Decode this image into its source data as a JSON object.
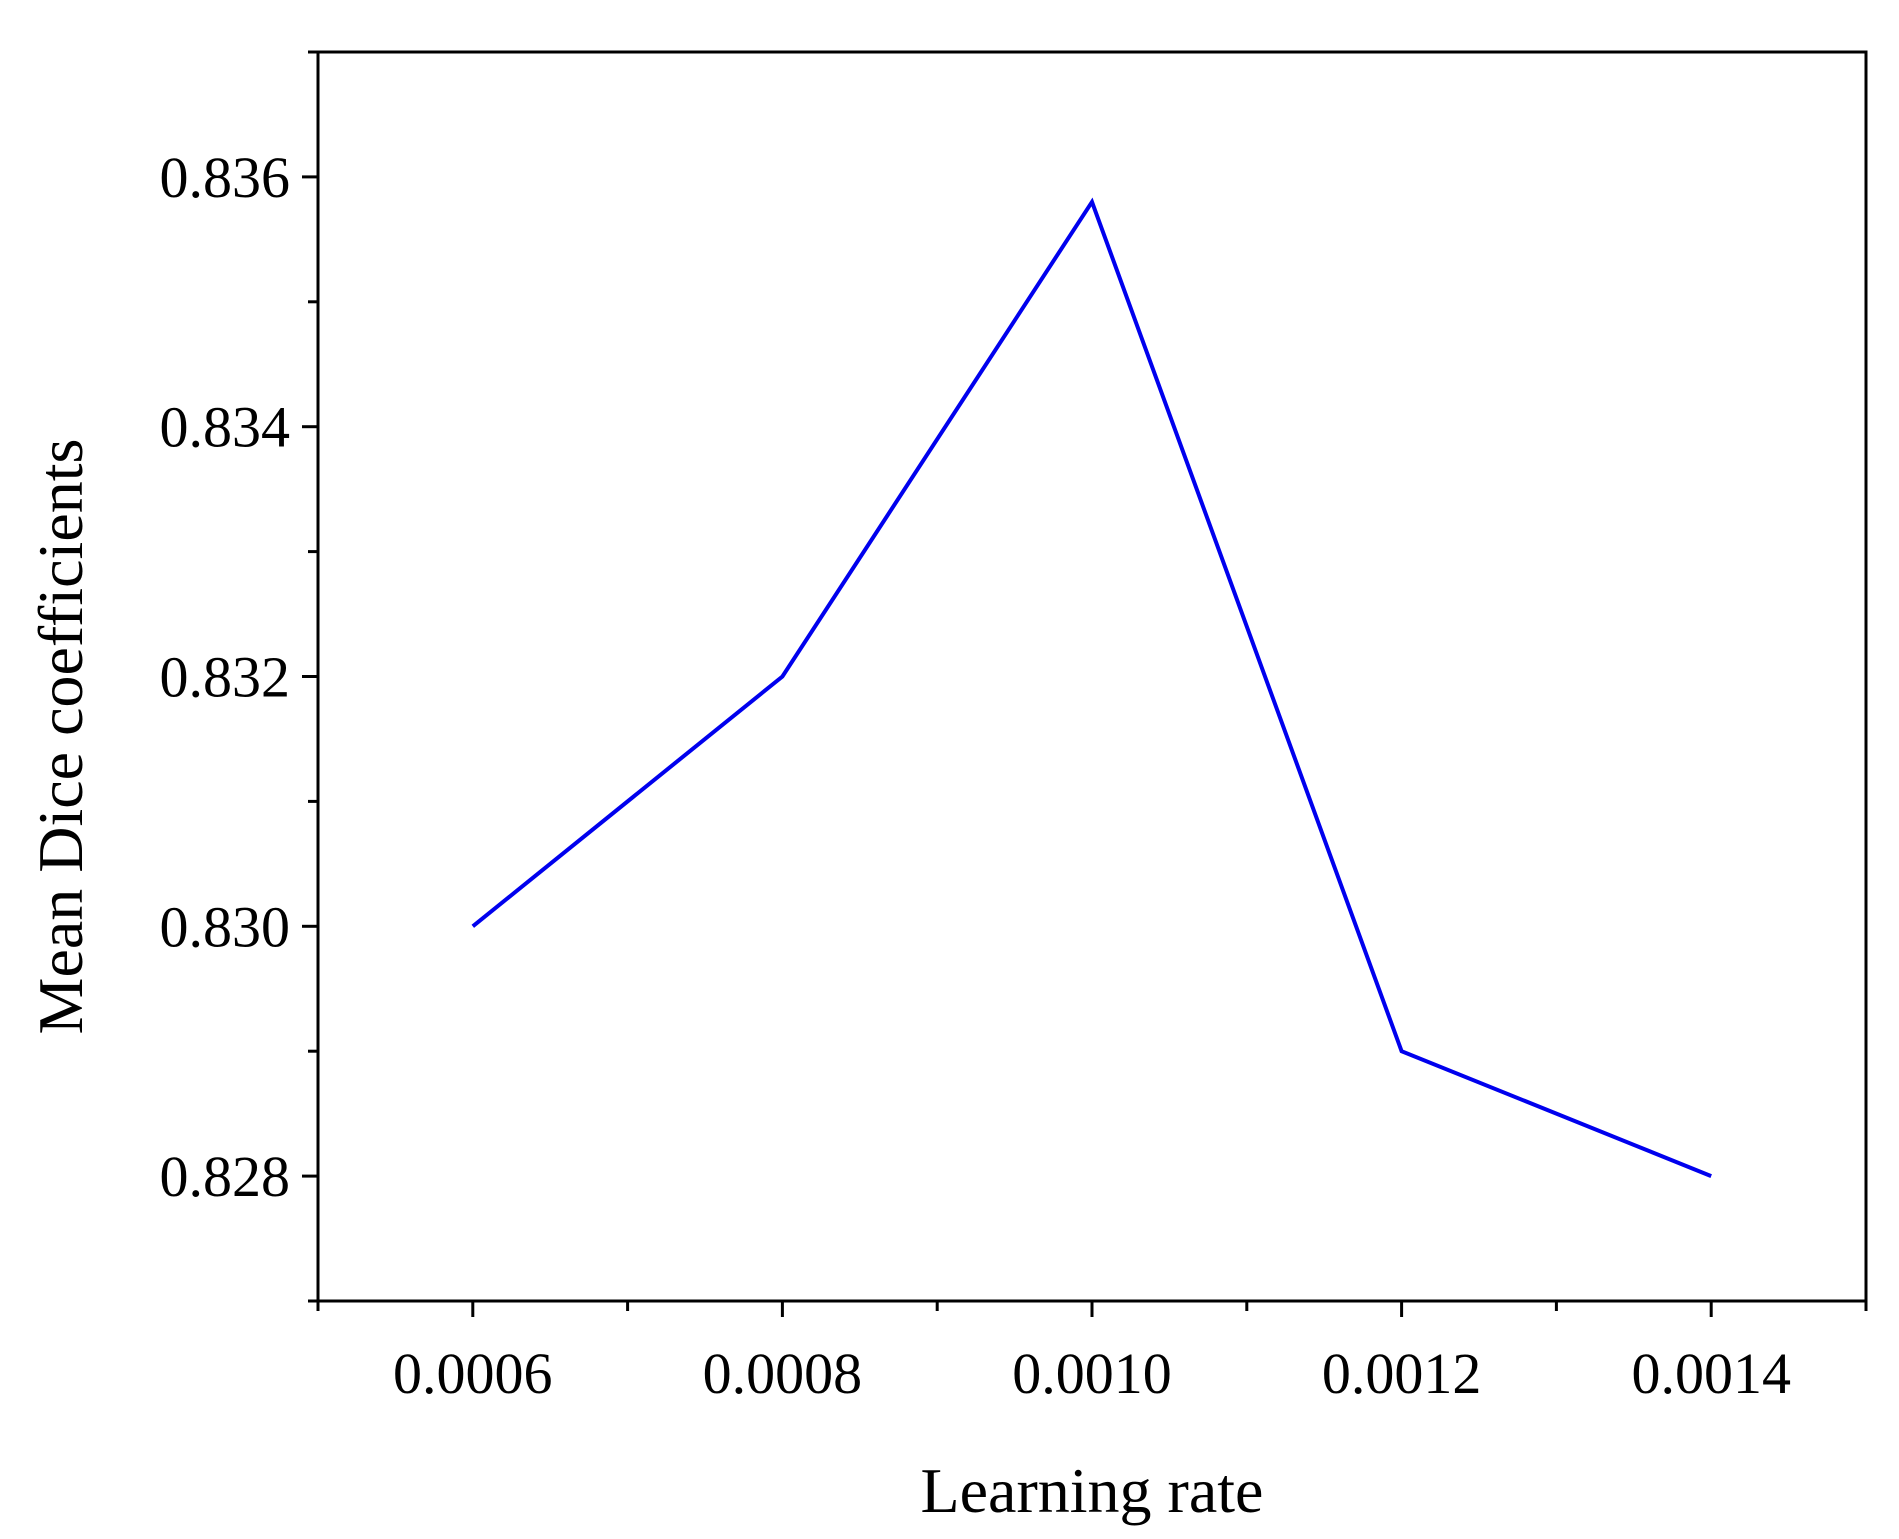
{
  "chart_data": {
    "type": "line",
    "title": "",
    "xlabel": "Learning rate",
    "ylabel": "Mean Dice coefficients",
    "x": [
      0.0006,
      0.0008,
      0.001,
      0.0012,
      0.0014
    ],
    "x_tick_labels": [
      "0.0006",
      "0.0008",
      "0.0010",
      "0.0012",
      "0.0014"
    ],
    "y_tick_values": [
      0.828,
      0.83,
      0.832,
      0.834,
      0.836
    ],
    "y_tick_labels": [
      "0.828",
      "0.830",
      "0.832",
      "0.834",
      "0.836"
    ],
    "xlim": [
      0.0005,
      0.0015
    ],
    "ylim": [
      0.827,
      0.837
    ],
    "grid": false,
    "legend": "none",
    "series": [
      {
        "values": [
          0.83,
          0.832,
          0.8358,
          0.829,
          0.828
        ],
        "color": "#0000ee"
      }
    ]
  }
}
